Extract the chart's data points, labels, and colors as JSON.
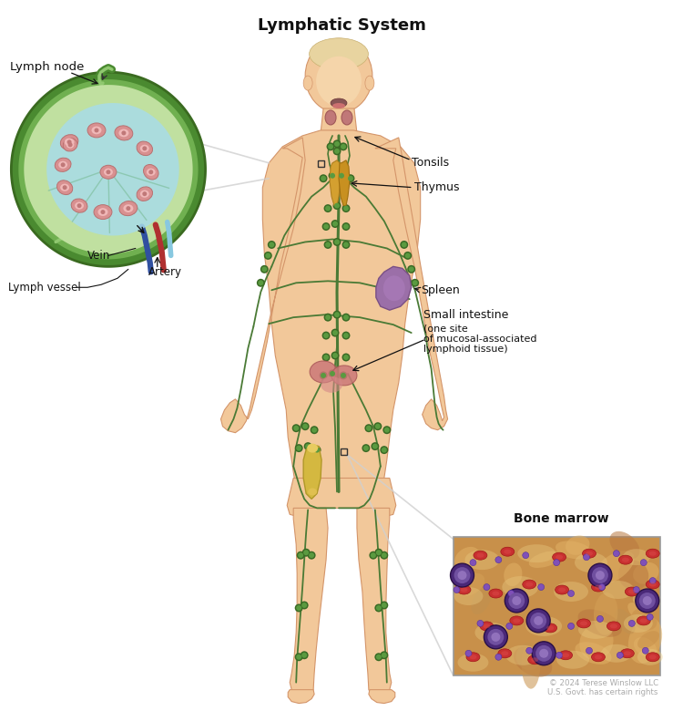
{
  "title": "Lymphatic System",
  "title_fontsize": 13,
  "title_fontweight": "bold",
  "background_color": "#ffffff",
  "labels": {
    "lymph_node": "Lymph node",
    "tonsils": "Tonsils",
    "thymus": "Thymus",
    "spleen": "Spleen",
    "small_intestine": "Small intestine",
    "small_intestine2": "(one site\nof mucosal-associated\nlymphoid tissue)",
    "bone_marrow": "Bone marrow",
    "vein": "Vein",
    "artery": "Artery",
    "lymph_vessel": "Lymph vessel"
  },
  "copyright": "© 2024 Terese Winslow LLC\nU.S. Govt. has certain rights",
  "colors": {
    "skin": "#F2C89A",
    "skin_shadow": "#E0A870",
    "skin_edge": "#D4956A",
    "lymph_vessel": "#4A7A35",
    "node_dot_outer": "#3A6A25",
    "node_dot_inner": "#5A9A40",
    "tonsil": "#C87878",
    "thymus_yellow": "#D4A030",
    "spleen_purple": "#9B6FA8",
    "intestine_pink": "#CC7070",
    "bone_yellow": "#D4B840",
    "vein_blue": "#3050A0",
    "artery_red": "#B03030",
    "marrow_bg": "#C8904A",
    "red_cell": "#C03030",
    "purple_cell_dark": "#4A2878",
    "purple_cell_mid": "#7050A0",
    "purple_cell_light": "#A080C8",
    "line_color": "#111111",
    "label_color": "#111111",
    "inset_line": "#C8C8C8",
    "node_green_dark": "#3A7028",
    "node_green_mid": "#5A9040",
    "node_green_light": "#90C870",
    "node_inner_teal": "#78C8D8",
    "node_inner_light": "#B8E8F0",
    "follicle_pink": "#D89090",
    "follicle_center": "#F0B8B8"
  }
}
